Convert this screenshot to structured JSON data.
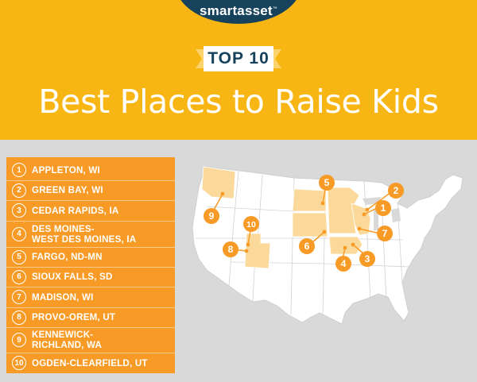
{
  "brand": {
    "logo_text": "smartasset",
    "logo_tm": "™"
  },
  "banner": {
    "top_label": "TOP 10"
  },
  "title": "Best Places to Raise Kids",
  "ranking": [
    {
      "rank": "1",
      "lines": [
        "APPLETON, WI"
      ]
    },
    {
      "rank": "2",
      "lines": [
        "GREEN BAY, WI"
      ]
    },
    {
      "rank": "3",
      "lines": [
        "CEDAR RAPIDS, IA"
      ]
    },
    {
      "rank": "4",
      "lines": [
        "DES MOINES-",
        "WEST DES MOINES, IA"
      ]
    },
    {
      "rank": "5",
      "lines": [
        "FARGO, ND-MN"
      ]
    },
    {
      "rank": "6",
      "lines": [
        "SIOUX FALLS, SD"
      ]
    },
    {
      "rank": "7",
      "lines": [
        "MADISON, WI"
      ]
    },
    {
      "rank": "8",
      "lines": [
        "PROVO-OREM, UT"
      ]
    },
    {
      "rank": "9",
      "lines": [
        "KENNEWICK-",
        "RICHLAND, WA"
      ]
    },
    {
      "rank": "10",
      "lines": [
        "OGDEN-CLEARFIELD, UT"
      ]
    }
  ],
  "map_pins": [
    "1",
    "2",
    "3",
    "4",
    "5",
    "6",
    "7",
    "8",
    "9",
    "10"
  ],
  "colors": {
    "header_bg": "#f8b614",
    "logo_bg": "#16425b",
    "list_bg": "#f79b26",
    "map_land": "#ffffff",
    "map_highlight": "#fbd99a",
    "pin": "#f79b26",
    "body_bg": "#d9d9d9"
  }
}
